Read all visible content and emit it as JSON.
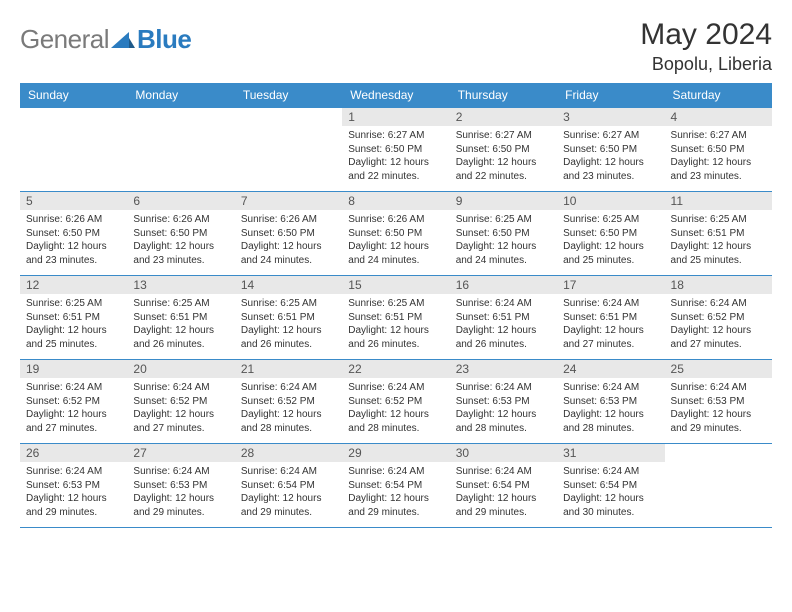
{
  "logo": {
    "general": "General",
    "blue": "Blue"
  },
  "title": {
    "month": "May 2024",
    "location": "Bopolu, Liberia"
  },
  "colors": {
    "header_bg": "#3a8bc9",
    "header_text": "#ffffff",
    "daynum_bg": "#e8e8e8",
    "border": "#3a8bc9",
    "logo_gray": "#7a7a7a",
    "logo_blue": "#2a7bbf"
  },
  "dayHeaders": [
    "Sunday",
    "Monday",
    "Tuesday",
    "Wednesday",
    "Thursday",
    "Friday",
    "Saturday"
  ],
  "weeks": [
    [
      null,
      null,
      null,
      {
        "n": "1",
        "sr": "6:27 AM",
        "ss": "6:50 PM",
        "dl": "12 hours and 22 minutes."
      },
      {
        "n": "2",
        "sr": "6:27 AM",
        "ss": "6:50 PM",
        "dl": "12 hours and 22 minutes."
      },
      {
        "n": "3",
        "sr": "6:27 AM",
        "ss": "6:50 PM",
        "dl": "12 hours and 23 minutes."
      },
      {
        "n": "4",
        "sr": "6:27 AM",
        "ss": "6:50 PM",
        "dl": "12 hours and 23 minutes."
      }
    ],
    [
      {
        "n": "5",
        "sr": "6:26 AM",
        "ss": "6:50 PM",
        "dl": "12 hours and 23 minutes."
      },
      {
        "n": "6",
        "sr": "6:26 AM",
        "ss": "6:50 PM",
        "dl": "12 hours and 23 minutes."
      },
      {
        "n": "7",
        "sr": "6:26 AM",
        "ss": "6:50 PM",
        "dl": "12 hours and 24 minutes."
      },
      {
        "n": "8",
        "sr": "6:26 AM",
        "ss": "6:50 PM",
        "dl": "12 hours and 24 minutes."
      },
      {
        "n": "9",
        "sr": "6:25 AM",
        "ss": "6:50 PM",
        "dl": "12 hours and 24 minutes."
      },
      {
        "n": "10",
        "sr": "6:25 AM",
        "ss": "6:50 PM",
        "dl": "12 hours and 25 minutes."
      },
      {
        "n": "11",
        "sr": "6:25 AM",
        "ss": "6:51 PM",
        "dl": "12 hours and 25 minutes."
      }
    ],
    [
      {
        "n": "12",
        "sr": "6:25 AM",
        "ss": "6:51 PM",
        "dl": "12 hours and 25 minutes."
      },
      {
        "n": "13",
        "sr": "6:25 AM",
        "ss": "6:51 PM",
        "dl": "12 hours and 26 minutes."
      },
      {
        "n": "14",
        "sr": "6:25 AM",
        "ss": "6:51 PM",
        "dl": "12 hours and 26 minutes."
      },
      {
        "n": "15",
        "sr": "6:25 AM",
        "ss": "6:51 PM",
        "dl": "12 hours and 26 minutes."
      },
      {
        "n": "16",
        "sr": "6:24 AM",
        "ss": "6:51 PM",
        "dl": "12 hours and 26 minutes."
      },
      {
        "n": "17",
        "sr": "6:24 AM",
        "ss": "6:51 PM",
        "dl": "12 hours and 27 minutes."
      },
      {
        "n": "18",
        "sr": "6:24 AM",
        "ss": "6:52 PM",
        "dl": "12 hours and 27 minutes."
      }
    ],
    [
      {
        "n": "19",
        "sr": "6:24 AM",
        "ss": "6:52 PM",
        "dl": "12 hours and 27 minutes."
      },
      {
        "n": "20",
        "sr": "6:24 AM",
        "ss": "6:52 PM",
        "dl": "12 hours and 27 minutes."
      },
      {
        "n": "21",
        "sr": "6:24 AM",
        "ss": "6:52 PM",
        "dl": "12 hours and 28 minutes."
      },
      {
        "n": "22",
        "sr": "6:24 AM",
        "ss": "6:52 PM",
        "dl": "12 hours and 28 minutes."
      },
      {
        "n": "23",
        "sr": "6:24 AM",
        "ss": "6:53 PM",
        "dl": "12 hours and 28 minutes."
      },
      {
        "n": "24",
        "sr": "6:24 AM",
        "ss": "6:53 PM",
        "dl": "12 hours and 28 minutes."
      },
      {
        "n": "25",
        "sr": "6:24 AM",
        "ss": "6:53 PM",
        "dl": "12 hours and 29 minutes."
      }
    ],
    [
      {
        "n": "26",
        "sr": "6:24 AM",
        "ss": "6:53 PM",
        "dl": "12 hours and 29 minutes."
      },
      {
        "n": "27",
        "sr": "6:24 AM",
        "ss": "6:53 PM",
        "dl": "12 hours and 29 minutes."
      },
      {
        "n": "28",
        "sr": "6:24 AM",
        "ss": "6:54 PM",
        "dl": "12 hours and 29 minutes."
      },
      {
        "n": "29",
        "sr": "6:24 AM",
        "ss": "6:54 PM",
        "dl": "12 hours and 29 minutes."
      },
      {
        "n": "30",
        "sr": "6:24 AM",
        "ss": "6:54 PM",
        "dl": "12 hours and 29 minutes."
      },
      {
        "n": "31",
        "sr": "6:24 AM",
        "ss": "6:54 PM",
        "dl": "12 hours and 30 minutes."
      },
      null
    ]
  ],
  "labels": {
    "sunrise": "Sunrise:",
    "sunset": "Sunset:",
    "daylight": "Daylight:"
  }
}
